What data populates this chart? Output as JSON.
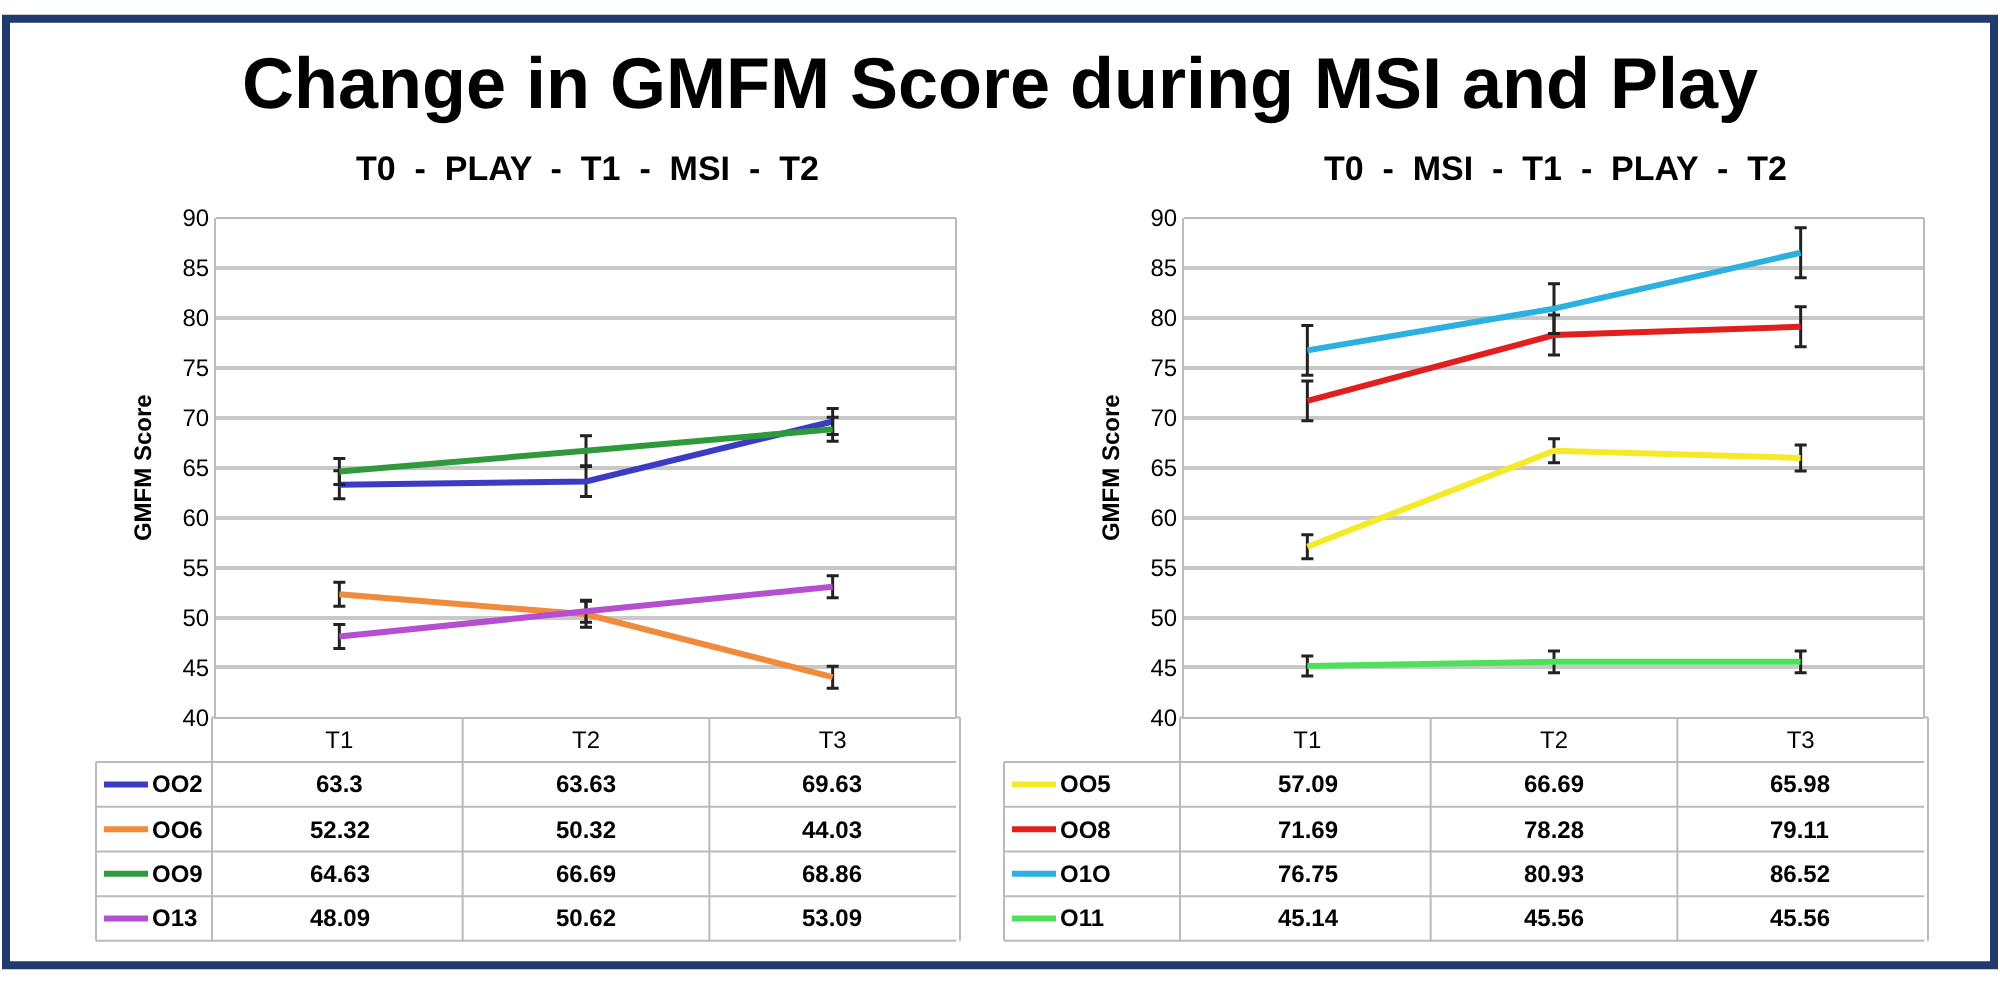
{
  "chart_data": [
    {
      "type": "line",
      "title": "Change in GMFM Score during MSI and Play",
      "subtitle": "T0  -  PLAY  -  T1  -  MSI  -  T2",
      "ylabel": "GMFM Score",
      "categories": [
        "T1",
        "T2",
        "T3"
      ],
      "ylim": [
        40,
        90
      ],
      "yticks": [
        40,
        45,
        50,
        55,
        60,
        65,
        70,
        75,
        80,
        85,
        90
      ],
      "grid": "y",
      "legend": "bottom",
      "data_labels": true,
      "marker": "none",
      "line_style": "solid",
      "series": [
        {
          "name": "OO2",
          "color": "#3b3bc4",
          "values": [
            63.3,
            63.63,
            69.63
          ],
          "errors": [
            1.4,
            1.5,
            1.3
          ]
        },
        {
          "name": "OO6",
          "color": "#f08a3c",
          "values": [
            52.32,
            50.32,
            44.03
          ],
          "errors": [
            1.2,
            1.3,
            1.1
          ]
        },
        {
          "name": "OO9",
          "color": "#2e9a3c",
          "values": [
            64.63,
            66.69,
            68.86
          ],
          "errors": [
            1.3,
            1.5,
            1.2
          ]
        },
        {
          "name": "O13",
          "color": "#b44fd0",
          "values": [
            48.09,
            50.62,
            53.09
          ],
          "errors": [
            1.2,
            1.1,
            1.1
          ]
        }
      ]
    },
    {
      "type": "line",
      "subtitle": "T0  -  MSI  -  T1  -  PLAY  -  T2",
      "ylabel": "GMFM Score",
      "categories": [
        "T1",
        "T2",
        "T3"
      ],
      "ylim": [
        40,
        90
      ],
      "yticks": [
        40,
        45,
        50,
        55,
        60,
        65,
        70,
        75,
        80,
        85,
        90
      ],
      "grid": "y",
      "legend": "bottom",
      "data_labels": true,
      "marker": "none",
      "line_style": "solid",
      "series": [
        {
          "name": "OO5",
          "color": "#f5ea2a",
          "values": [
            57.09,
            66.69,
            65.98
          ],
          "errors": [
            1.2,
            1.2,
            1.3
          ]
        },
        {
          "name": "OO8",
          "color": "#e0201e",
          "values": [
            71.69,
            78.28,
            79.11
          ],
          "errors": [
            2.0,
            2.0,
            2.0
          ]
        },
        {
          "name": "O1O",
          "color": "#2cb0e0",
          "values": [
            76.75,
            80.93,
            86.52
          ],
          "errors": [
            2.5,
            2.5,
            2.5
          ]
        },
        {
          "name": "O11",
          "color": "#4ee05a",
          "values": [
            45.14,
            45.56,
            45.56
          ],
          "errors": [
            1.0,
            1.1,
            1.1
          ]
        }
      ]
    }
  ]
}
